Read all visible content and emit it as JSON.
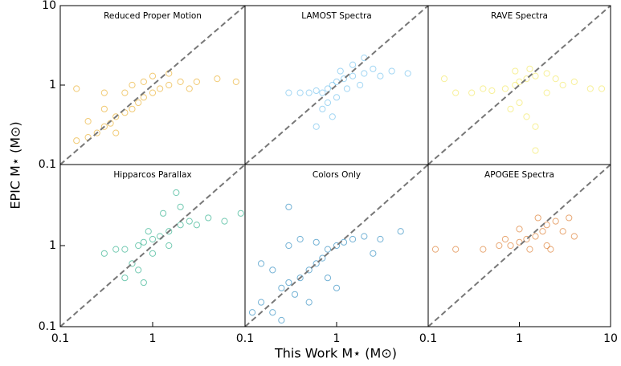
{
  "figure": {
    "xlabel": "This Work M⋆ (M⊙)",
    "ylabel": "EPIC M⋆ (M⊙)"
  },
  "chart_data": [
    {
      "type": "scatter",
      "title": "Reduced Proper Motion",
      "color": "#e69f00",
      "log": true,
      "xlim": [
        0.1,
        10
      ],
      "ylim": [
        0.1,
        10
      ],
      "yticks": [
        0.1,
        1,
        10
      ],
      "x": [
        0.15,
        0.2,
        0.25,
        0.3,
        0.35,
        0.4,
        0.5,
        0.6,
        0.7,
        0.8,
        1,
        1.2,
        1.5,
        2,
        3,
        5,
        8,
        0.5,
        0.6,
        0.8,
        1,
        1.5,
        0.3,
        0.2,
        0.4,
        2.5,
        0.15,
        0.3
      ],
      "y": [
        0.2,
        0.22,
        0.25,
        0.3,
        0.33,
        0.4,
        0.45,
        0.5,
        0.6,
        0.7,
        0.8,
        0.9,
        1.0,
        1.1,
        1.1,
        1.2,
        1.1,
        0.8,
        1.0,
        1.1,
        1.3,
        1.4,
        0.5,
        0.35,
        0.25,
        0.9,
        0.9,
        0.8
      ]
    },
    {
      "type": "scatter",
      "title": "LAMOST Spectra",
      "color": "#56b4e9",
      "log": true,
      "xlim": [
        0.1,
        10
      ],
      "ylim": [
        0.1,
        10
      ],
      "x": [
        0.5,
        0.6,
        0.7,
        0.8,
        0.9,
        1,
        1.2,
        1.5,
        2,
        2.5,
        3,
        4,
        6,
        1,
        0.8,
        0.7,
        0.9,
        1.3,
        1.5,
        2,
        0.6,
        1.1,
        1.8,
        0.4,
        0.3
      ],
      "y": [
        0.8,
        0.85,
        0.8,
        0.9,
        1.0,
        1.1,
        1.2,
        1.3,
        1.4,
        1.6,
        1.3,
        1.5,
        1.4,
        0.7,
        0.6,
        0.5,
        0.4,
        0.9,
        1.8,
        2.2,
        0.3,
        1.5,
        1.0,
        0.8,
        0.8
      ]
    },
    {
      "type": "scatter",
      "title": "RAVE Spectra",
      "color": "#f0e442",
      "log": true,
      "xlim": [
        0.1,
        10
      ],
      "ylim": [
        0.1,
        10
      ],
      "x": [
        0.2,
        0.3,
        0.5,
        0.7,
        0.9,
        1,
        1.2,
        1.5,
        2,
        2.5,
        3,
        4,
        6,
        8,
        1,
        1.2,
        0.8,
        1.5,
        1.3,
        0.9,
        2,
        0.4,
        1.5,
        0.15
      ],
      "y": [
        0.8,
        0.8,
        0.85,
        0.9,
        1.0,
        1.1,
        1.2,
        1.3,
        1.4,
        1.2,
        1.0,
        1.1,
        0.9,
        0.9,
        0.6,
        0.4,
        0.5,
        0.3,
        1.6,
        1.5,
        0.8,
        0.9,
        0.15,
        1.2
      ]
    },
    {
      "type": "scatter",
      "title": "Hipparcos Parallax",
      "color": "#009e73",
      "log": true,
      "xlim": [
        0.1,
        10
      ],
      "ylim": [
        0.1,
        10
      ],
      "xticks": [
        0.1,
        1
      ],
      "yticks": [
        0.1,
        1
      ],
      "x": [
        0.3,
        0.4,
        0.5,
        0.7,
        0.8,
        1,
        1.2,
        1.5,
        2,
        2.5,
        3,
        4,
        6,
        9,
        0.6,
        0.7,
        1,
        1.3,
        2,
        0.5,
        1.5,
        0.9,
        1.8,
        0.8
      ],
      "y": [
        0.8,
        0.9,
        0.9,
        1.0,
        1.1,
        1.2,
        1.3,
        1.5,
        1.8,
        2.0,
        1.8,
        2.2,
        2.0,
        2.5,
        0.6,
        0.5,
        0.8,
        2.5,
        3.0,
        0.4,
        1.0,
        1.5,
        4.5,
        0.35
      ]
    },
    {
      "type": "scatter",
      "title": "Colors Only",
      "color": "#0072b2",
      "log": true,
      "xlim": [
        0.1,
        10
      ],
      "ylim": [
        0.1,
        10
      ],
      "xticks": [
        0.1,
        1
      ],
      "x": [
        0.12,
        0.15,
        0.2,
        0.25,
        0.3,
        0.35,
        0.4,
        0.5,
        0.6,
        0.7,
        0.8,
        1,
        1.2,
        1.5,
        2,
        3,
        5,
        0.3,
        0.4,
        0.6,
        0.2,
        0.5,
        1,
        0.15,
        0.8,
        0.3,
        2.5,
        0.25
      ],
      "y": [
        0.15,
        0.2,
        0.15,
        0.3,
        0.35,
        0.25,
        0.4,
        0.5,
        0.6,
        0.7,
        0.9,
        1.0,
        1.1,
        1.2,
        1.3,
        1.2,
        1.5,
        1.0,
        1.2,
        1.1,
        0.5,
        0.2,
        0.3,
        0.6,
        0.4,
        3.0,
        0.8,
        0.12
      ]
    },
    {
      "type": "scatter",
      "title": "APOGEE Spectra",
      "color": "#d55e00",
      "log": true,
      "xlim": [
        0.1,
        10
      ],
      "ylim": [
        0.1,
        10
      ],
      "xticks": [
        0.1,
        1,
        10
      ],
      "x": [
        0.12,
        0.2,
        0.4,
        0.6,
        0.8,
        1,
        1.2,
        1.5,
        1.8,
        2,
        2.5,
        3,
        4,
        1,
        1.3,
        2,
        1.6,
        0.7,
        2.2,
        3.5
      ],
      "y": [
        0.9,
        0.9,
        0.9,
        1.0,
        1.0,
        1.1,
        1.2,
        1.3,
        1.5,
        1.8,
        2.0,
        1.5,
        1.3,
        1.6,
        0.9,
        1.0,
        2.2,
        1.2,
        0.9,
        2.2
      ]
    }
  ]
}
